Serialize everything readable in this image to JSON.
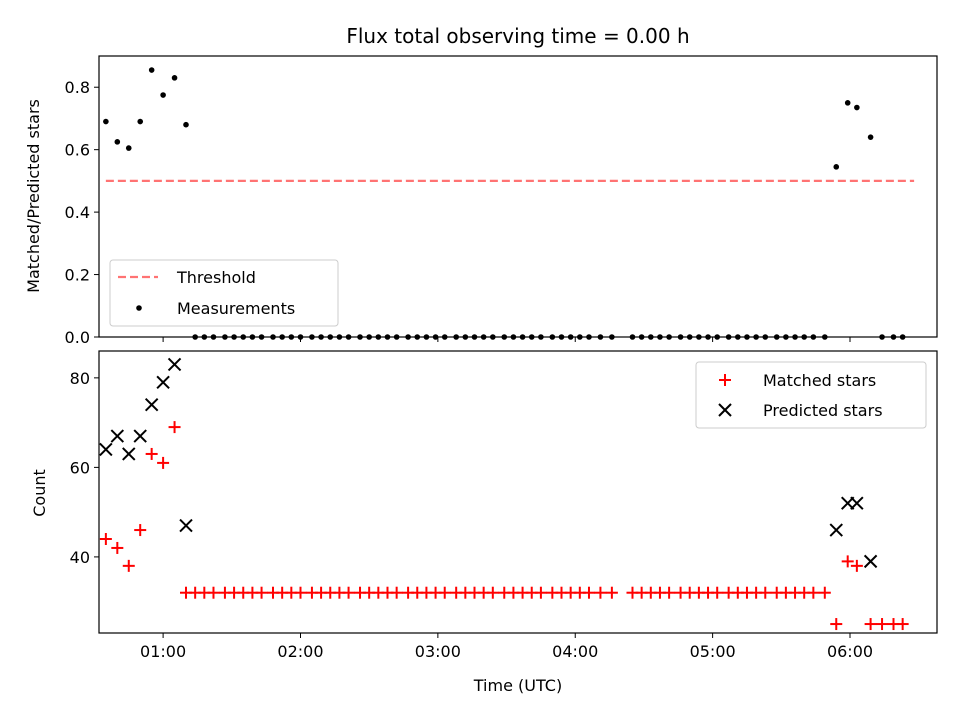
{
  "chart_data": [
    {
      "type": "scatter",
      "title": "Flux total observing time = 0.00 h",
      "xlabel": "",
      "ylabel": "Matched/Predicted stars",
      "xlim": [
        "00:32",
        "06:38"
      ],
      "ylim": [
        0,
        0.9
      ],
      "yticks": [
        0.0,
        0.2,
        0.4,
        0.6,
        0.8
      ],
      "yticklabels": [
        "0.0",
        "0.2",
        "0.4",
        "0.6",
        "0.8"
      ],
      "legend": {
        "placement": "lower-left",
        "entries": [
          {
            "label": "Threshold",
            "marker": "dashed-line",
            "color": "#ff7373"
          },
          {
            "label": "Measurements",
            "marker": "dot",
            "color": "#000000"
          }
        ]
      },
      "threshold": {
        "value": 0.5,
        "x_start": "00:35",
        "x_end": "06:28",
        "color": "#ff7373"
      },
      "series": [
        {
          "name": "Measurements",
          "color": "#000000",
          "x": [
            "00:35",
            "00:40",
            "00:45",
            "00:50",
            "00:55",
            "01:00",
            "01:05",
            "01:10",
            "01:14",
            "01:18",
            "01:22",
            "01:27",
            "01:31",
            "01:35",
            "01:39",
            "01:43",
            "01:48",
            "01:52",
            "01:56",
            "02:00",
            "02:05",
            "02:09",
            "02:13",
            "02:17",
            "02:21",
            "02:26",
            "02:30",
            "02:34",
            "02:38",
            "02:42",
            "02:47",
            "02:51",
            "02:55",
            "02:59",
            "03:03",
            "03:08",
            "03:12",
            "03:16",
            "03:20",
            "03:24",
            "03:29",
            "03:33",
            "03:37",
            "03:41",
            "03:45",
            "03:50",
            "03:54",
            "03:58",
            "04:02",
            "04:06",
            "04:11",
            "04:16",
            "04:25",
            "04:29",
            "04:33",
            "04:37",
            "04:41",
            "04:46",
            "04:50",
            "04:54",
            "04:58",
            "05:02",
            "05:07",
            "05:11",
            "05:15",
            "05:19",
            "05:23",
            "05:28",
            "05:32",
            "05:36",
            "05:40",
            "05:44",
            "05:49",
            "05:54",
            "05:59",
            "06:03",
            "06:09",
            "06:14",
            "06:19",
            "06:23"
          ],
          "y": [
            0.69,
            0.625,
            0.605,
            0.69,
            0.855,
            0.775,
            0.83,
            0.68,
            0,
            0,
            0,
            0,
            0,
            0,
            0,
            0,
            0,
            0,
            0,
            0,
            0,
            0,
            0,
            0,
            0,
            0,
            0,
            0,
            0,
            0,
            0,
            0,
            0,
            0,
            0,
            0,
            0,
            0,
            0,
            0,
            0,
            0,
            0,
            0,
            0,
            0,
            0,
            0,
            0,
            0,
            0,
            0,
            0,
            0,
            0,
            0,
            0,
            0,
            0,
            0,
            0,
            0,
            0,
            0,
            0,
            0,
            0,
            0,
            0,
            0,
            0,
            0,
            0,
            0.545,
            0.75,
            0.735,
            0.64,
            0,
            0,
            0
          ]
        }
      ]
    },
    {
      "type": "scatter",
      "xlabel": "Time (UTC)",
      "ylabel": "Count",
      "xlim": [
        "00:32",
        "06:38"
      ],
      "ylim": [
        23,
        86
      ],
      "xticks": [
        "01:00",
        "02:00",
        "03:00",
        "04:00",
        "05:00",
        "06:00"
      ],
      "yticks": [
        40,
        60,
        80
      ],
      "legend": {
        "placement": "top-right",
        "entries": [
          {
            "label": "Matched stars",
            "marker": "plus",
            "color": "#ff0000"
          },
          {
            "label": "Predicted stars",
            "marker": "x",
            "color": "#000000"
          }
        ]
      },
      "series": [
        {
          "name": "Matched stars",
          "color": "#ff0000",
          "x": [
            "00:35",
            "00:40",
            "00:45",
            "00:50",
            "00:55",
            "01:00",
            "01:05",
            "01:10",
            "01:14",
            "01:18",
            "01:22",
            "01:27",
            "01:31",
            "01:35",
            "01:39",
            "01:43",
            "01:48",
            "01:52",
            "01:56",
            "02:00",
            "02:05",
            "02:09",
            "02:13",
            "02:17",
            "02:21",
            "02:26",
            "02:30",
            "02:34",
            "02:38",
            "02:42",
            "02:47",
            "02:51",
            "02:55",
            "02:59",
            "03:03",
            "03:08",
            "03:12",
            "03:16",
            "03:20",
            "03:24",
            "03:29",
            "03:33",
            "03:37",
            "03:41",
            "03:45",
            "03:50",
            "03:54",
            "03:58",
            "04:02",
            "04:06",
            "04:11",
            "04:16",
            "04:25",
            "04:29",
            "04:33",
            "04:37",
            "04:41",
            "04:46",
            "04:50",
            "04:54",
            "04:58",
            "05:02",
            "05:07",
            "05:11",
            "05:15",
            "05:19",
            "05:23",
            "05:28",
            "05:32",
            "05:36",
            "05:40",
            "05:44",
            "05:49",
            "05:54",
            "05:59",
            "06:03",
            "06:09",
            "06:14",
            "06:19",
            "06:23"
          ],
          "y": [
            44,
            42,
            38,
            46,
            63,
            61,
            69,
            32,
            32,
            32,
            32,
            32,
            32,
            32,
            32,
            32,
            32,
            32,
            32,
            32,
            32,
            32,
            32,
            32,
            32,
            32,
            32,
            32,
            32,
            32,
            32,
            32,
            32,
            32,
            32,
            32,
            32,
            32,
            32,
            32,
            32,
            32,
            32,
            32,
            32,
            32,
            32,
            32,
            32,
            32,
            32,
            32,
            32,
            32,
            32,
            32,
            32,
            32,
            32,
            32,
            32,
            32,
            32,
            32,
            32,
            32,
            32,
            32,
            32,
            32,
            32,
            32,
            32,
            25,
            39,
            38,
            25,
            25,
            25,
            25
          ]
        },
        {
          "name": "Predicted stars",
          "color": "#000000",
          "x": [
            "00:35",
            "00:40",
            "00:45",
            "00:50",
            "00:55",
            "01:00",
            "01:05",
            "01:10",
            "05:54",
            "05:59",
            "06:03",
            "06:09"
          ],
          "y": [
            64,
            67,
            63,
            67,
            74,
            79,
            83,
            47,
            46,
            52,
            52,
            39
          ]
        }
      ]
    }
  ]
}
